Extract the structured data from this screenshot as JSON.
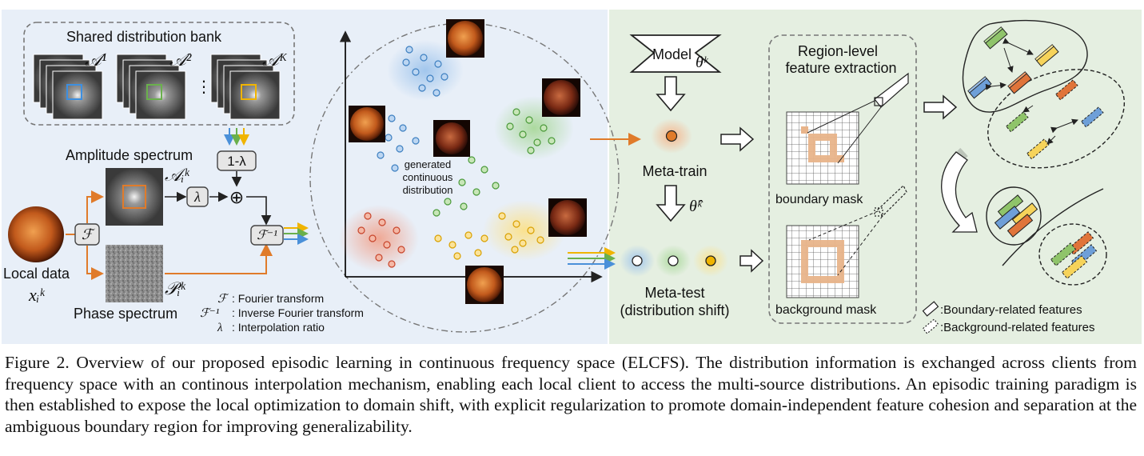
{
  "left_panel": {
    "bank_title": "Shared distribution bank",
    "bank_labels": [
      "𝒜¹",
      "𝒜²",
      "𝒜ᴷ"
    ],
    "ellipsis": "⋮",
    "amplitude_label": "Amplitude spectrum",
    "amplitude_symbol": "𝒜ᵢᵏ",
    "phase_label": "Phase spectrum",
    "phase_symbol": "𝒫ᵢᵏ",
    "local_data_label": "Local data",
    "local_data_symbol": "xᵢᵏ",
    "fourier_box": "ℱ",
    "inverse_box": "ℱ⁻¹",
    "lambda_box": "λ",
    "one_minus_lambda_box": "1-λ",
    "plus_symbol": "⊕",
    "legend": [
      {
        "symbol": "ℱ",
        "text": ": Fourier transform"
      },
      {
        "symbol": "ℱ⁻¹",
        "text": ": Inverse Fourier transform"
      },
      {
        "symbol": "λ",
        "text": ": Interpolation ratio"
      }
    ]
  },
  "middle_panel": {
    "cluster_label_lines": [
      "generated",
      "continuous",
      "distribution"
    ],
    "cluster_colors": {
      "blue": "#3d7fc0",
      "green": "#4a9a3a",
      "red": "#c8442a",
      "yellow": "#e0b000"
    }
  },
  "right_panel": {
    "model_label": "Model",
    "model_symbol": "θᵏ",
    "meta_train_label": "Meta-train",
    "theta_hat_symbol": "θ̂ᵏ",
    "meta_test_label": "Meta-test",
    "meta_test_sub": "(distribution shift)",
    "region_title_lines": [
      "Region-level",
      "feature extraction"
    ],
    "boundary_mask_label": "boundary mask",
    "background_mask_label": "background mask",
    "legend_boundary": ":Boundary-related features",
    "legend_background": ":Background-related features"
  },
  "colors": {
    "left_bg": "#e8eff8",
    "right_bg": "#e5efe1",
    "arrow_orange": "#e07b2a",
    "box_fill": "#e6e6e6",
    "mask_orange": "#e8b48a"
  },
  "caption": "Figure 2. Overview of our proposed episodic learning in continuous frequency space (ELCFS). The distribution information is exchanged across clients from frequency space with an continous interpolation mechanism, enabling each local client to access the multi-source distributions. An episodic training paradigm is then established to expose the local optimization to domain shift, with explicit regularization to promote domain-independent feature cohesion and separation at the ambiguous boundary region for improving generalizability."
}
